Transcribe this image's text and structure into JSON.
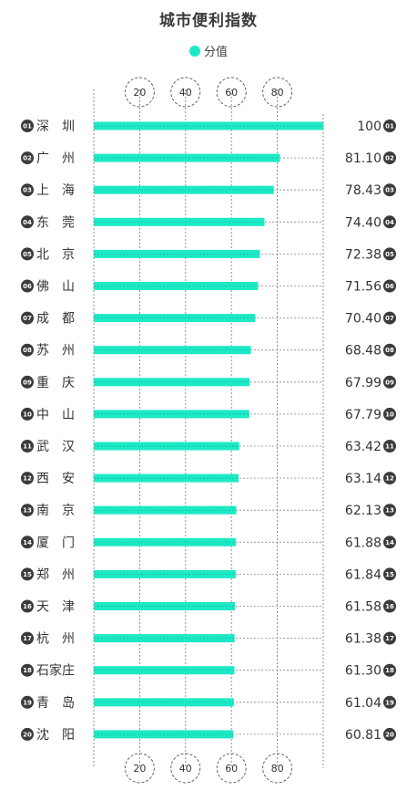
{
  "title": "城市便利指数",
  "legend": {
    "label": "分值",
    "color": "#1de9c5"
  },
  "chart_data": {
    "type": "bar",
    "orientation": "horizontal",
    "title": "城市便利指数",
    "series": [
      {
        "name": "分值",
        "values": [
          100,
          81.1,
          78.43,
          74.4,
          72.38,
          71.56,
          70.4,
          68.48,
          67.99,
          67.79,
          63.42,
          63.14,
          62.13,
          61.88,
          61.84,
          61.58,
          61.38,
          61.3,
          61.04,
          60.81
        ]
      }
    ],
    "categories": [
      "深　圳",
      "广　州",
      "上　海",
      "东　莞",
      "北　京",
      "佛　山",
      "成　都",
      "苏　州",
      "重　庆",
      "中　山",
      "武　汉",
      "西　安",
      "南　京",
      "厦　门",
      "郑　州",
      "天　津",
      "杭　州",
      "石家庄",
      "青　岛",
      "沈　阳"
    ],
    "ranks": [
      "01",
      "02",
      "03",
      "04",
      "05",
      "06",
      "07",
      "08",
      "09",
      "10",
      "11",
      "12",
      "13",
      "14",
      "15",
      "16",
      "17",
      "18",
      "19",
      "20"
    ],
    "value_labels": [
      "100",
      "81.10",
      "78.43",
      "74.40",
      "72.38",
      "71.56",
      "70.40",
      "68.48",
      "67.99",
      "67.79",
      "63.42",
      "63.14",
      "62.13",
      "61.88",
      "61.84",
      "61.58",
      "61.38",
      "61.30",
      "61.04",
      "60.81"
    ],
    "x_ticks": [
      "20",
      "40",
      "60",
      "80"
    ],
    "xlim": [
      0,
      100
    ],
    "bar_color": "#1de9c5",
    "legend_position": "top-center",
    "grid": true
  }
}
